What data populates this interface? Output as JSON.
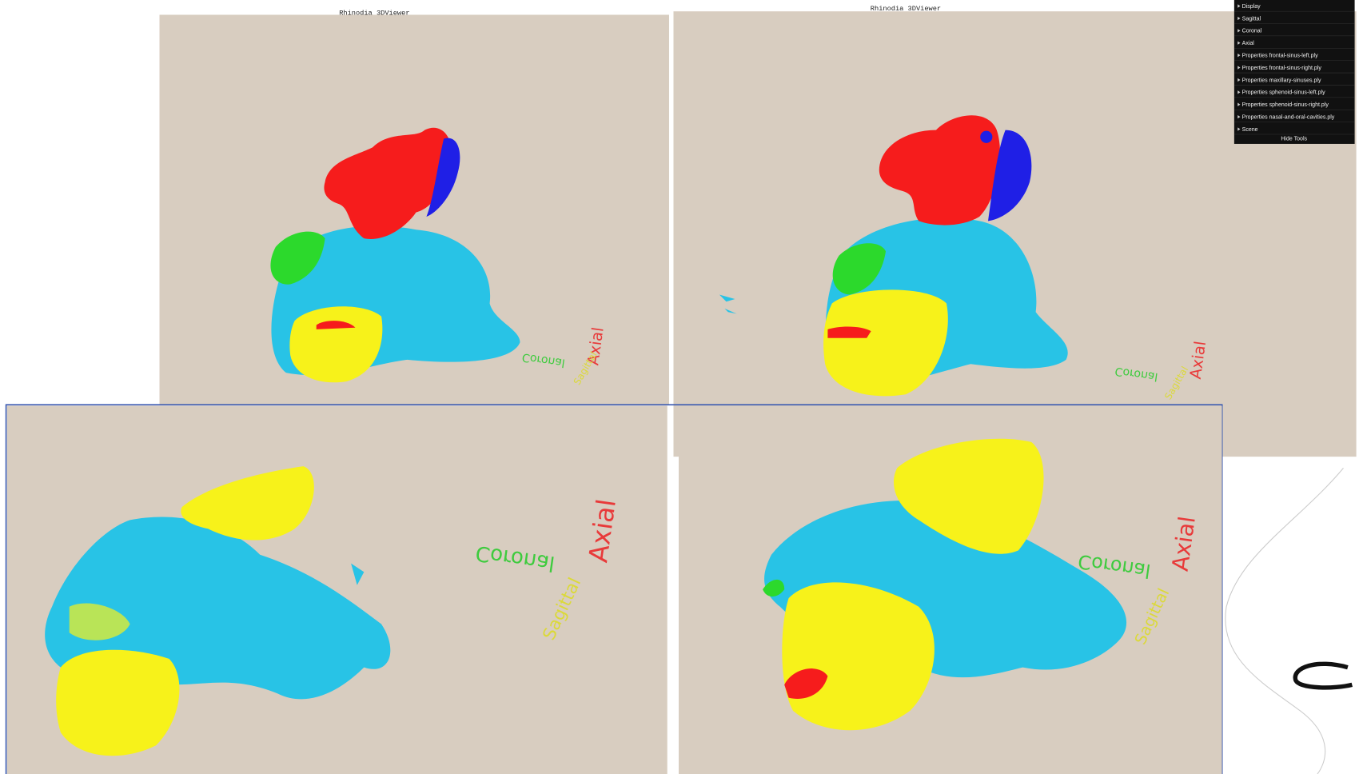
{
  "viewers": [
    {
      "title": "Rhinodia 3DViewer"
    },
    {
      "title": "Rhinodia 3DViewer"
    }
  ],
  "menu": {
    "items": [
      "Display",
      "Sagittal",
      "Coronal",
      "Axial",
      "Properties frontal-sinus-left.ply",
      "Properties frontal-sinus-right.ply",
      "Properties maxillary-sinuses.ply",
      "Properties sphenoid-sinus-left.ply",
      "Properties sphenoid-sinus-right.ply",
      "Properties nasal-and-oral-cavities.ply",
      "Scene"
    ],
    "hide": "Hide Tools"
  },
  "panels": [
    {
      "axes": {
        "axial": "Axial",
        "coronal": "Coronal",
        "sagittal": "Sagittal"
      }
    },
    {
      "axes": {
        "axial": "Axial",
        "coronal": "Coronal",
        "sagittal": "Sagittal"
      }
    },
    {
      "axes": {
        "axial": "Axial",
        "coronal": "Coronal",
        "sagittal": "Sagittal"
      }
    },
    {
      "axes": {
        "axial": "Axial",
        "coronal": "Coronal",
        "sagittal": "Sagittal"
      }
    }
  ]
}
